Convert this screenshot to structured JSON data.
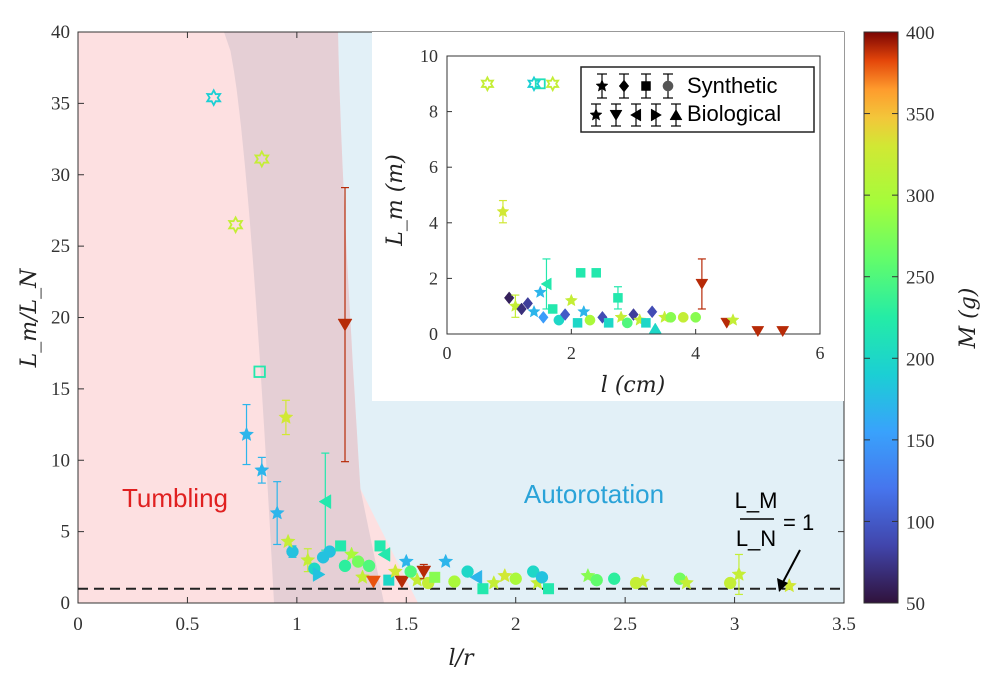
{
  "chart_data": {
    "type": "scatter",
    "main": {
      "xlabel": "l/r",
      "ylabel": "L_m/L_N",
      "xlim": [
        0,
        3.5
      ],
      "ylim": [
        0,
        40
      ],
      "xticks": [
        "0",
        "0.5",
        "1",
        "1.5",
        "2",
        "2.5",
        "3",
        "3.5"
      ],
      "yticks": [
        "0",
        "5",
        "10",
        "15",
        "20",
        "25",
        "30",
        "35",
        "40"
      ],
      "regions": {
        "left": "Tumbling",
        "right": "Autorotation"
      },
      "reference_line": {
        "y": 1,
        "label_num": "L_M",
        "label_den": "L_N",
        "label_eq": "= 1"
      },
      "points": [
        {
          "x": 0.62,
          "y": 35.4,
          "c": 190,
          "m": "star",
          "open": true
        },
        {
          "x": 0.84,
          "y": 31.1,
          "c": 320,
          "m": "star",
          "open": true
        },
        {
          "x": 0.72,
          "y": 26.5,
          "c": 320,
          "m": "star",
          "open": true
        },
        {
          "x": 1.22,
          "y": 19.5,
          "c": 390,
          "m": "tri-down",
          "eu": 9.6,
          "el": 9.6
        },
        {
          "x": 0.83,
          "y": 16.2,
          "c": 220,
          "m": "square",
          "open": true
        },
        {
          "x": 0.95,
          "y": 13.0,
          "c": 330,
          "m": "star",
          "eu": 1.2,
          "el": 1.2
        },
        {
          "x": 0.77,
          "y": 11.8,
          "c": 170,
          "m": "star",
          "eu": 2.1,
          "el": 2.1
        },
        {
          "x": 0.84,
          "y": 9.3,
          "c": 170,
          "m": "star",
          "eu": 0.9,
          "el": 0.9
        },
        {
          "x": 0.91,
          "y": 6.3,
          "c": 170,
          "m": "star",
          "eu": 2.2,
          "el": 2.2
        },
        {
          "x": 1.13,
          "y": 7.1,
          "c": 220,
          "m": "tri-left",
          "eu": 3.4,
          "el": 3.4
        },
        {
          "x": 0.98,
          "y": 3.6,
          "c": 180,
          "m": "circle",
          "eu": 0.4,
          "el": 0.4
        },
        {
          "x": 0.96,
          "y": 4.3,
          "c": 320,
          "m": "star"
        },
        {
          "x": 1.05,
          "y": 3.0,
          "c": 320,
          "m": "star",
          "eu": 0.8,
          "el": 0.8
        },
        {
          "x": 1.08,
          "y": 2.4,
          "c": 200,
          "m": "circle"
        },
        {
          "x": 1.12,
          "y": 3.2,
          "c": 180,
          "m": "circle"
        },
        {
          "x": 1.15,
          "y": 3.6,
          "c": 180,
          "m": "circle"
        },
        {
          "x": 1.1,
          "y": 2.0,
          "c": 180,
          "m": "tri-right"
        },
        {
          "x": 1.2,
          "y": 4.0,
          "c": 220,
          "m": "square"
        },
        {
          "x": 1.22,
          "y": 2.6,
          "c": 230,
          "m": "circle"
        },
        {
          "x": 1.25,
          "y": 3.4,
          "c": 300,
          "m": "star"
        },
        {
          "x": 1.28,
          "y": 2.9,
          "c": 270,
          "m": "circle"
        },
        {
          "x": 1.3,
          "y": 1.8,
          "c": 320,
          "m": "star"
        },
        {
          "x": 1.33,
          "y": 2.6,
          "c": 250,
          "m": "circle"
        },
        {
          "x": 1.35,
          "y": 1.5,
          "c": 380,
          "m": "tri-down"
        },
        {
          "x": 1.38,
          "y": 4.0,
          "c": 220,
          "m": "square"
        },
        {
          "x": 1.4,
          "y": 3.4,
          "c": 220,
          "m": "tri-left"
        },
        {
          "x": 1.42,
          "y": 1.6,
          "c": 200,
          "m": "square"
        },
        {
          "x": 1.45,
          "y": 2.2,
          "c": 330,
          "m": "star"
        },
        {
          "x": 1.48,
          "y": 1.5,
          "c": 390,
          "m": "tri-down"
        },
        {
          "x": 1.5,
          "y": 2.9,
          "c": 170,
          "m": "star"
        },
        {
          "x": 1.52,
          "y": 2.2,
          "c": 250,
          "m": "circle"
        },
        {
          "x": 1.55,
          "y": 1.6,
          "c": 320,
          "m": "star"
        },
        {
          "x": 1.58,
          "y": 2.2,
          "c": 390,
          "m": "tri-down",
          "eu": 0.5,
          "el": 0.5
        },
        {
          "x": 1.6,
          "y": 1.4,
          "c": 320,
          "m": "circle"
        },
        {
          "x": 1.63,
          "y": 1.8,
          "c": 280,
          "m": "square"
        },
        {
          "x": 1.68,
          "y": 2.9,
          "c": 170,
          "m": "star"
        },
        {
          "x": 1.72,
          "y": 1.5,
          "c": 300,
          "m": "circle"
        },
        {
          "x": 1.78,
          "y": 2.2,
          "c": 200,
          "m": "circle"
        },
        {
          "x": 1.82,
          "y": 1.8,
          "c": 170,
          "m": "tri-left"
        },
        {
          "x": 1.85,
          "y": 1.0,
          "c": 220,
          "m": "square"
        },
        {
          "x": 1.9,
          "y": 1.4,
          "c": 320,
          "m": "star"
        },
        {
          "x": 1.95,
          "y": 1.9,
          "c": 330,
          "m": "star"
        },
        {
          "x": 2.0,
          "y": 1.7,
          "c": 300,
          "m": "circle"
        },
        {
          "x": 2.08,
          "y": 2.2,
          "c": 200,
          "m": "circle"
        },
        {
          "x": 2.1,
          "y": 1.4,
          "c": 320,
          "m": "star"
        },
        {
          "x": 2.12,
          "y": 1.8,
          "c": 180,
          "m": "circle"
        },
        {
          "x": 2.15,
          "y": 1.0,
          "c": 220,
          "m": "square"
        },
        {
          "x": 2.33,
          "y": 1.9,
          "c": 280,
          "m": "star"
        },
        {
          "x": 2.37,
          "y": 1.6,
          "c": 260,
          "m": "circle"
        },
        {
          "x": 2.45,
          "y": 1.7,
          "c": 230,
          "m": "circle"
        },
        {
          "x": 2.55,
          "y": 1.4,
          "c": 320,
          "m": "circle"
        },
        {
          "x": 2.58,
          "y": 1.5,
          "c": 320,
          "m": "star"
        },
        {
          "x": 2.75,
          "y": 1.7,
          "c": 270,
          "m": "circle"
        },
        {
          "x": 2.78,
          "y": 1.4,
          "c": 320,
          "m": "star"
        },
        {
          "x": 2.98,
          "y": 1.4,
          "c": 320,
          "m": "circle"
        },
        {
          "x": 3.02,
          "y": 2.0,
          "c": 320,
          "m": "star",
          "eu": 1.4,
          "el": 1.4
        },
        {
          "x": 3.25,
          "y": 1.2,
          "c": 330,
          "m": "star"
        }
      ]
    },
    "inset": {
      "xlabel": "l (cm)",
      "ylabel": "L_m (m)",
      "xlim": [
        0,
        6
      ],
      "ylim": [
        0,
        10
      ],
      "xticks": [
        "0",
        "2",
        "4",
        "6"
      ],
      "yticks": [
        "0",
        "2",
        "4",
        "6",
        "8",
        "10"
      ],
      "legend": [
        {
          "label": "Synthetic"
        },
        {
          "label": "Biological"
        }
      ],
      "points": [
        {
          "x": 0.65,
          "y": 9.0,
          "c": 320,
          "m": "star",
          "open": true
        },
        {
          "x": 1.4,
          "y": 9.0,
          "c": 190,
          "m": "star",
          "open": true
        },
        {
          "x": 1.5,
          "y": 9.0,
          "c": 210,
          "m": "square",
          "open": true
        },
        {
          "x": 1.7,
          "y": 9.0,
          "c": 320,
          "m": "star",
          "open": true
        },
        {
          "x": 0.9,
          "y": 4.4,
          "c": 330,
          "m": "star",
          "eu": 0.4,
          "el": 0.4
        },
        {
          "x": 1.0,
          "y": 1.3,
          "c": 60,
          "m": "diamond"
        },
        {
          "x": 1.1,
          "y": 1.0,
          "c": 320,
          "m": "star",
          "eu": 0.4,
          "el": 0.4
        },
        {
          "x": 1.2,
          "y": 0.9,
          "c": 70,
          "m": "diamond"
        },
        {
          "x": 1.3,
          "y": 1.1,
          "c": 80,
          "m": "diamond"
        },
        {
          "x": 1.4,
          "y": 0.8,
          "c": 170,
          "m": "star"
        },
        {
          "x": 1.5,
          "y": 1.5,
          "c": 170,
          "m": "star"
        },
        {
          "x": 1.6,
          "y": 1.8,
          "c": 220,
          "m": "tri-left",
          "eu": 0.9,
          "el": 0.9
        },
        {
          "x": 1.55,
          "y": 0.6,
          "c": 150,
          "m": "diamond"
        },
        {
          "x": 1.7,
          "y": 0.9,
          "c": 220,
          "m": "square"
        },
        {
          "x": 1.8,
          "y": 0.5,
          "c": 200,
          "m": "circle"
        },
        {
          "x": 1.9,
          "y": 0.7,
          "c": 100,
          "m": "diamond"
        },
        {
          "x": 2.0,
          "y": 1.2,
          "c": 320,
          "m": "star"
        },
        {
          "x": 2.1,
          "y": 0.4,
          "c": 200,
          "m": "square"
        },
        {
          "x": 2.15,
          "y": 2.2,
          "c": 220,
          "m": "square"
        },
        {
          "x": 2.2,
          "y": 0.8,
          "c": 170,
          "m": "star"
        },
        {
          "x": 2.3,
          "y": 0.5,
          "c": 300,
          "m": "circle"
        },
        {
          "x": 2.4,
          "y": 2.2,
          "c": 220,
          "m": "square"
        },
        {
          "x": 2.5,
          "y": 0.6,
          "c": 90,
          "m": "diamond"
        },
        {
          "x": 2.6,
          "y": 0.4,
          "c": 200,
          "m": "square"
        },
        {
          "x": 2.75,
          "y": 1.3,
          "c": 220,
          "m": "square",
          "eu": 0.4,
          "el": 0.4
        },
        {
          "x": 2.8,
          "y": 0.6,
          "c": 320,
          "m": "star"
        },
        {
          "x": 2.9,
          "y": 0.4,
          "c": 250,
          "m": "circle"
        },
        {
          "x": 3.0,
          "y": 0.7,
          "c": 80,
          "m": "diamond"
        },
        {
          "x": 3.1,
          "y": 0.5,
          "c": 320,
          "m": "star"
        },
        {
          "x": 3.2,
          "y": 0.4,
          "c": 200,
          "m": "square"
        },
        {
          "x": 3.3,
          "y": 0.8,
          "c": 90,
          "m": "diamond"
        },
        {
          "x": 3.35,
          "y": 0.2,
          "c": 200,
          "m": "tri-up"
        },
        {
          "x": 3.5,
          "y": 0.6,
          "c": 320,
          "m": "star"
        },
        {
          "x": 3.6,
          "y": 0.6,
          "c": 280,
          "m": "circle"
        },
        {
          "x": 3.8,
          "y": 0.6,
          "c": 320,
          "m": "circle"
        },
        {
          "x": 4.0,
          "y": 0.6,
          "c": 280,
          "m": "circle"
        },
        {
          "x": 4.1,
          "y": 1.8,
          "c": 390,
          "m": "tri-down",
          "eu": 0.9,
          "el": 0.9
        },
        {
          "x": 4.5,
          "y": 0.4,
          "c": 390,
          "m": "tri-down"
        },
        {
          "x": 4.6,
          "y": 0.5,
          "c": 320,
          "m": "star"
        },
        {
          "x": 5.0,
          "y": 0.1,
          "c": 390,
          "m": "tri-down"
        },
        {
          "x": 5.4,
          "y": 0.1,
          "c": 390,
          "m": "tri-down"
        }
      ]
    },
    "colorbar": {
      "label": "M (g)",
      "range": [
        50,
        400
      ],
      "ticks": [
        "50",
        "100",
        "150",
        "200",
        "250",
        "300",
        "350",
        "400"
      ],
      "colormap": "turbo"
    }
  },
  "colors": {
    "tumbling_region": "#fde0e1",
    "transition_band": "#e0cbd2",
    "autorotation_region": "#e2f0f7",
    "tumbling_text": "#e02020",
    "autorotation_text": "#2aa3d8",
    "reference_line": "#222222"
  }
}
